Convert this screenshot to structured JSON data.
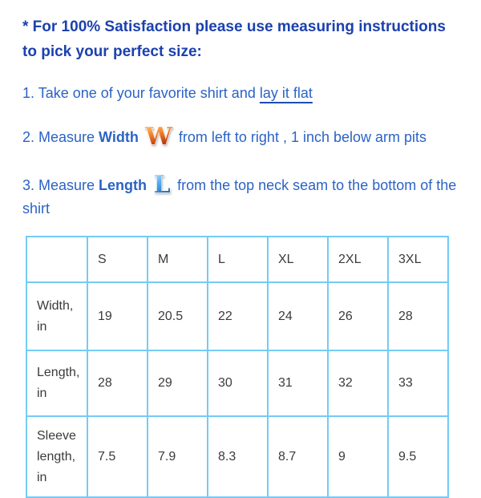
{
  "colors": {
    "heading_blue": "#1b41ae",
    "body_blue": "#2b63c5",
    "underline_blue": "#1d4db4",
    "table_border_blue": "#74cbf5",
    "table_text": "#3b3b3b",
    "background": "#ffffff",
    "w_icon_top": "#ffd98f",
    "w_icon_mid": "#f6812a",
    "w_icon_bottom": "#a32305",
    "l_icon_top": "#cdeeff",
    "l_icon_mid": "#59b0f0",
    "l_icon_bottom": "#1f66b8"
  },
  "heading": {
    "lines": [
      "* For 100% Satisfaction please use measuring instructions",
      "to pick your perfect size:"
    ]
  },
  "steps": [
    {
      "text": "1. Take one of your favorite shirt and ",
      "underlined": "lay it flat"
    },
    {
      "text_before": "2. Measure ",
      "bold": "Width",
      "icon": "decorative-letter-w",
      "icon_letter": "W",
      "text_after": "from left to right , 1 inch below arm pits"
    },
    {
      "text_before": "3. Measure ",
      "bold": "Length",
      "icon": "decorative-letter-l",
      "icon_letter": "L",
      "text_after": "from the top neck seam to the bottom of the shirt"
    }
  ],
  "size_table": {
    "column_headers": [
      "",
      "S",
      "M",
      "L",
      "XL",
      "2XL",
      "3XL"
    ],
    "rows": [
      {
        "label": "Width, in",
        "values": [
          "19",
          "20.5",
          "22",
          "24",
          "26",
          "28"
        ]
      },
      {
        "label": "Length, in",
        "values": [
          "28",
          "29",
          "30",
          "31",
          "32",
          "33"
        ]
      },
      {
        "label": "Sleeve length, in",
        "values": [
          "7.5",
          "7.9",
          "8.3",
          "8.7",
          "9",
          "9.5"
        ]
      }
    ]
  }
}
